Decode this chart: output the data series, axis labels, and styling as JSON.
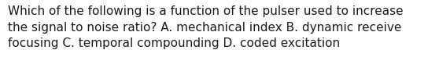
{
  "text": "Which of the following is a function of the pulser used to increase\nthe signal to noise ratio? A. mechanical index B. dynamic receive\nfocusing C. temporal compounding D. coded excitation",
  "background_color": "#ffffff",
  "text_color": "#1a1a1a",
  "font_size": 11.0,
  "fig_width": 5.58,
  "fig_height": 1.05,
  "dpi": 100
}
